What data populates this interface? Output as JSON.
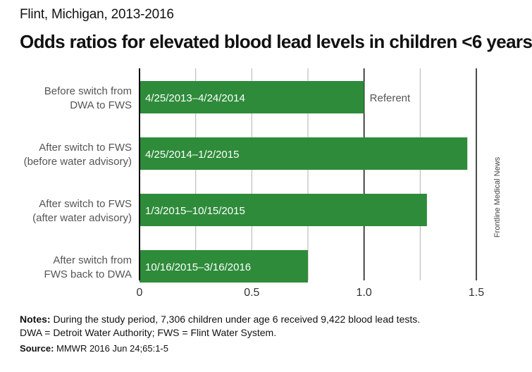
{
  "header": {
    "kicker": "Flint, Michigan, 2013-2016",
    "title": "Odds ratios for elevated blood lead levels in children <6 years"
  },
  "chart_data": {
    "type": "bar",
    "orientation": "horizontal",
    "categories": [
      [
        "Before switch from",
        "DWA to FWS"
      ],
      [
        "After switch to FWS",
        "(before water advisory)"
      ],
      [
        "After switch to FWS",
        "(after water advisory)"
      ],
      [
        "After switch from",
        "FWS back to DWA"
      ]
    ],
    "bar_labels": [
      "4/25/2013–4/24/2014",
      "4/25/2014–1/2/2015",
      "1/3/2015–10/15/2015",
      "10/16/2015–3/16/2016"
    ],
    "values": [
      1.0,
      1.46,
      1.28,
      0.75
    ],
    "annotations": [
      {
        "category_index": 0,
        "text": "Referent"
      }
    ],
    "x_ticks": [
      0,
      0.5,
      1.0,
      1.5
    ],
    "x_tick_labels": [
      "0",
      "0.5",
      "1.0",
      "1.5"
    ],
    "xlim": [
      0,
      1.5
    ],
    "grid": "vertical",
    "bar_color": "#2e8b3a",
    "grid_color": "#bdbdbd",
    "axis_color": "#000000"
  },
  "credit": "Frontline Medical News",
  "notes": {
    "label": "Notes:",
    "line1": " During the study period, 7,306 children under age 6 received 9,422 blood lead tests.",
    "line2": "DWA = Detroit Water Authority; FWS = Flint Water System."
  },
  "source": {
    "label": "Source:",
    "text": " MMWR 2016 Jun 24;65:1-5"
  }
}
